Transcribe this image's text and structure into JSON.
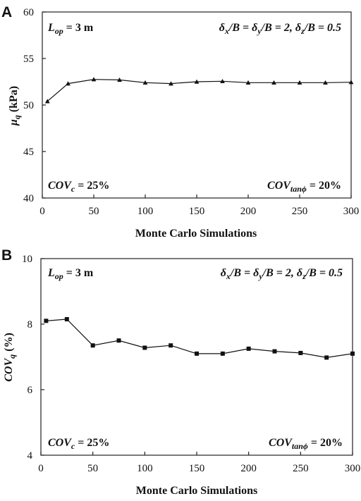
{
  "chart_data": [
    {
      "panel": "A",
      "type": "line",
      "marker": "triangle",
      "xlabel": "Monte Carlo Simulations",
      "ylabel": "μq (kPa)",
      "ylabel_parts": {
        "symbol": "μ",
        "sub": "q",
        "rest": " (kPa)"
      },
      "xlim": [
        0,
        300
      ],
      "ylim": [
        40,
        60
      ],
      "xticks": [
        0,
        50,
        100,
        150,
        200,
        250,
        300
      ],
      "yticks": [
        40,
        45,
        50,
        55,
        60
      ],
      "x": [
        5,
        25,
        50,
        75,
        100,
        125,
        150,
        175,
        200,
        225,
        250,
        275,
        300
      ],
      "y": [
        50.4,
        52.3,
        52.75,
        52.7,
        52.4,
        52.3,
        52.5,
        52.55,
        52.4,
        52.4,
        52.4,
        52.4,
        52.45
      ],
      "annotations": {
        "top_left": {
          "v": "L",
          "sub": "op",
          "rest": " = 3 m"
        },
        "top_right": {
          "text": "δx/B = δy/B = 2, δz/B = 0.5",
          "a": "δ",
          "as": "x",
          "b": "/B = ",
          "c": "δ",
          "cs": "y",
          "d": "/B = 2, ",
          "e": "δ",
          "es": "z",
          "f": "/B = 0.5"
        },
        "bottom_left": {
          "v": "COV",
          "sub": "c",
          "rest": " = 25%"
        },
        "bottom_right": {
          "v": "COV",
          "sub": "tanϕ",
          "rest": " = 20%"
        }
      },
      "grid": false,
      "legend": "none"
    },
    {
      "panel": "B",
      "type": "line",
      "marker": "square",
      "xlabel": "Monte Carlo Simulations",
      "ylabel": "COVq (%)",
      "ylabel_parts": {
        "symbol": "COV",
        "sub": "q",
        "rest": " (%)"
      },
      "xlim": [
        0,
        300
      ],
      "ylim": [
        4,
        10
      ],
      "xticks": [
        0,
        50,
        100,
        150,
        200,
        250,
        300
      ],
      "yticks": [
        4,
        6,
        8,
        10
      ],
      "x": [
        5,
        25,
        50,
        75,
        100,
        125,
        150,
        175,
        200,
        225,
        250,
        275,
        300
      ],
      "y": [
        8.1,
        8.15,
        7.35,
        7.5,
        7.28,
        7.35,
        7.1,
        7.1,
        7.25,
        7.17,
        7.12,
        6.98,
        7.1
      ],
      "annotations": {
        "top_left": {
          "v": "L",
          "sub": "op",
          "rest": " = 3 m"
        },
        "top_right": {
          "text": "δx/B = δy/B = 2, δz/B = 0.5",
          "a": "δ",
          "as": "x",
          "b": "/B = ",
          "c": "δ",
          "cs": "y",
          "d": "/B = 2, ",
          "e": "δ",
          "es": "z",
          "f": "/B = 0.5"
        },
        "bottom_left": {
          "v": "COV",
          "sub": "c",
          "rest": " = 25%"
        },
        "bottom_right": {
          "v": "COV",
          "sub": "tanϕ",
          "rest": " = 20%"
        }
      },
      "grid": false,
      "legend": "none"
    }
  ]
}
